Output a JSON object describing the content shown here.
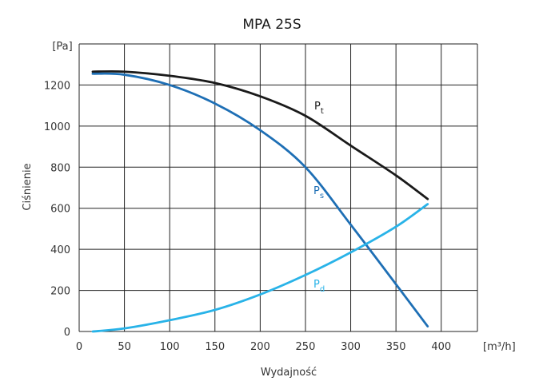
{
  "chart_data": {
    "type": "line",
    "title": "MPA 25S",
    "xlabel": "Wydajność",
    "ylabel": "Ciśnienie",
    "x_unit": "[m³/h]",
    "y_unit": "[Pa]",
    "xlim": [
      0,
      440
    ],
    "ylim": [
      0,
      1400
    ],
    "x_ticks": [
      0,
      50,
      100,
      150,
      200,
      250,
      300,
      350,
      400
    ],
    "y_ticks": [
      0,
      200,
      400,
      600,
      800,
      1000,
      1200
    ],
    "grid": true,
    "series": [
      {
        "name": "Pt",
        "label_main": "P",
        "label_sub": "t",
        "color": "#1a1a1a",
        "x": [
          15,
          50,
          100,
          150,
          200,
          250,
          300,
          350,
          385
        ],
        "y": [
          1265,
          1265,
          1245,
          1210,
          1145,
          1050,
          905,
          760,
          645
        ]
      },
      {
        "name": "Ps",
        "label_main": "P",
        "label_sub": "s",
        "color": "#1e6fb5",
        "x": [
          15,
          50,
          100,
          150,
          200,
          250,
          300,
          350,
          385
        ],
        "y": [
          1255,
          1250,
          1200,
          1110,
          980,
          800,
          520,
          230,
          25
        ]
      },
      {
        "name": "Pd",
        "label_main": "P",
        "label_sub": "d",
        "color": "#29b3e8",
        "x": [
          15,
          50,
          100,
          150,
          200,
          250,
          300,
          350,
          385
        ],
        "y": [
          0,
          15,
          55,
          105,
          180,
          275,
          385,
          510,
          620
        ]
      }
    ]
  }
}
